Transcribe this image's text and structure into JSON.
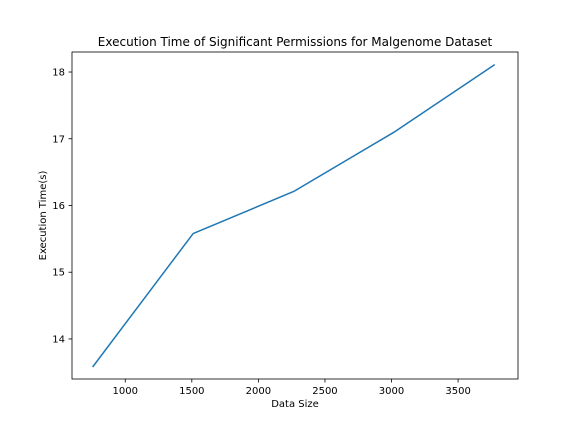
{
  "chart_data": {
    "type": "line",
    "title": "Execution Time of Significant Permissions for Malgenome Dataset",
    "xlabel": "Data Size",
    "ylabel": "Execution Time(s)",
    "xlim": [
      600,
      3950
    ],
    "ylim": [
      13.4,
      18.3
    ],
    "xticks": [
      1000,
      1500,
      2000,
      2500,
      3000,
      3500
    ],
    "yticks": [
      14,
      15,
      16,
      17,
      18
    ],
    "grid": false,
    "series": [
      {
        "color": "#1f77b4",
        "x": [
          755,
          1510,
          2265,
          3020,
          3775
        ],
        "y": [
          13.58,
          15.58,
          16.21,
          17.1,
          18.11
        ]
      }
    ]
  }
}
